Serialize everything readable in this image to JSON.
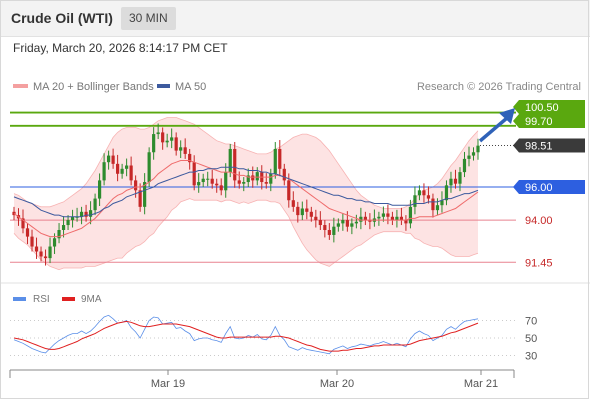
{
  "header": {
    "title": "Crude Oil (WTI)",
    "interval": "30 MIN",
    "datetime": "Friday, March 20, 2026 8:14:17 PM CET"
  },
  "legend": {
    "ma20_label": "MA 20 + Bollinger Bands",
    "ma50_label": "MA 50",
    "credit": "Research © 2026 Trading Central",
    "rsi_label": "RSI",
    "rsi_ma_label": "9MA"
  },
  "colors": {
    "candle_up": "#2e8b2e",
    "candle_down": "#c62828",
    "bollinger_fill": "#fde3e3",
    "bollinger_line": "#f7b3b3",
    "ma20": "#ef6b6b",
    "ma50": "#3d5a9e",
    "resistance": "#5aa80f",
    "pivot": "#2d5fe0",
    "support": "#e8828f",
    "rsi": "#5b8fe8",
    "rsi_ma": "#e02020",
    "arrow": "#2f62b8"
  },
  "chart_data": [
    {
      "type": "candlestick",
      "title": "Crude Oil (WTI)",
      "interval": "30 MIN",
      "x_tick_labels": [
        "Mar 19",
        "Mar 20",
        "Mar 21"
      ],
      "ylim": [
        90.8,
        101.2
      ],
      "levels": [
        {
          "value": 100.5,
          "label": "100.50",
          "role": "resistance"
        },
        {
          "value": 99.7,
          "label": "99.70",
          "role": "resistance"
        },
        {
          "value": 98.51,
          "label": "98.51",
          "role": "last"
        },
        {
          "value": 96.0,
          "label": "96.00",
          "role": "pivot"
        },
        {
          "value": 94.0,
          "label": "94.00",
          "role": "support"
        },
        {
          "value": 91.45,
          "label": "91.45",
          "role": "support"
        }
      ],
      "close": [
        94.3,
        94.1,
        93.5,
        93.0,
        92.4,
        92.1,
        91.8,
        91.7,
        92.4,
        92.9,
        93.4,
        93.7,
        94.0,
        94.2,
        94.2,
        94.5,
        94.2,
        94.6,
        95.3,
        96.4,
        97.5,
        97.9,
        97.4,
        96.8,
        97.1,
        97.3,
        96.4,
        95.8,
        94.8,
        96.3,
        98.1,
        99.2,
        99.3,
        98.7,
        98.8,
        99.0,
        98.2,
        98.4,
        98.0,
        97.5,
        96.1,
        96.3,
        96.5,
        96.5,
        96.2,
        96.1,
        95.8,
        96.9,
        98.3,
        96.4,
        96.2,
        96.3,
        96.7,
        96.4,
        96.9,
        96.3,
        96.2,
        96.8,
        98.3,
        97.1,
        96.4,
        95.2,
        94.8,
        94.3,
        94.7,
        94.5,
        94.2,
        94.0,
        93.7,
        93.4,
        93.1,
        93.6,
        93.8,
        94.0,
        93.6,
        93.8,
        93.9,
        94.2,
        94.0,
        93.9,
        94.1,
        94.2,
        94.4,
        94.2,
        94.0,
        94.2,
        94.0,
        93.8,
        94.8,
        95.5,
        95.8,
        95.5,
        95.3,
        94.6,
        94.9,
        95.2,
        96.1,
        96.5,
        96.2,
        96.9,
        97.7,
        97.9,
        98.1,
        98.5
      ],
      "ma20": [
        94.4,
        94.2,
        94.0,
        93.8,
        93.6,
        93.4,
        93.2,
        93.1,
        93.0,
        93.0,
        93.0,
        93.1,
        93.2,
        93.3,
        93.4,
        93.5,
        93.7,
        93.9,
        94.1,
        94.4,
        94.7,
        95.0,
        95.3,
        95.5,
        95.6,
        95.8,
        95.9,
        96.0,
        96.0,
        96.1,
        96.3,
        96.5,
        96.8,
        97.0,
        97.2,
        97.4,
        97.5,
        97.6,
        97.6,
        97.6,
        97.5,
        97.4,
        97.3,
        97.2,
        97.1,
        97.0,
        96.9,
        96.9,
        96.9,
        96.8,
        96.7,
        96.7,
        96.6,
        96.6,
        96.6,
        96.6,
        96.6,
        96.6,
        96.7,
        96.7,
        96.6,
        96.5,
        96.3,
        96.1,
        95.9,
        95.7,
        95.5,
        95.3,
        95.1,
        94.9,
        94.7,
        94.6,
        94.5,
        94.4,
        94.3,
        94.2,
        94.1,
        94.0,
        94.0,
        94.0,
        94.0,
        94.0,
        94.0,
        94.0,
        94.0,
        94.0,
        94.0,
        94.0,
        94.1,
        94.1,
        94.2,
        94.2,
        94.2,
        94.2,
        94.3,
        94.4,
        94.5,
        94.6,
        94.7,
        94.9,
        95.1,
        95.3,
        95.5,
        95.7
      ],
      "bollinger_upper": [
        95.6,
        95.5,
        95.3,
        95.1,
        95.0,
        94.9,
        94.8,
        94.8,
        94.8,
        94.9,
        95.0,
        95.1,
        95.3,
        95.5,
        95.7,
        95.9,
        96.2,
        96.6,
        97.0,
        97.5,
        98.0,
        98.5,
        99.0,
        99.3,
        99.5,
        99.6,
        99.6,
        99.6,
        99.5,
        99.5,
        99.6,
        99.8,
        100.0,
        100.1,
        100.2,
        100.2,
        100.2,
        100.1,
        100.0,
        99.9,
        99.8,
        99.6,
        99.4,
        99.2,
        99.0,
        98.8,
        98.7,
        98.6,
        98.6,
        98.5,
        98.4,
        98.3,
        98.2,
        98.1,
        98.0,
        98.0,
        98.0,
        98.1,
        98.3,
        98.4,
        98.6,
        98.8,
        99.0,
        99.1,
        99.2,
        99.2,
        99.1,
        99.0,
        98.8,
        98.5,
        98.2,
        97.8,
        97.4,
        97.0,
        96.6,
        96.2,
        95.8,
        95.5,
        95.3,
        95.1,
        94.9,
        94.8,
        94.7,
        94.7,
        94.7,
        94.7,
        94.7,
        94.8,
        95.0,
        95.3,
        95.6,
        95.8,
        95.9,
        96.0,
        96.2,
        96.5,
        96.9,
        97.3,
        97.6,
        98.0,
        98.4,
        98.8,
        99.1,
        99.4
      ],
      "bollinger_lower": [
        93.2,
        92.9,
        92.7,
        92.5,
        92.2,
        91.9,
        91.6,
        91.4,
        91.2,
        91.1,
        91.0,
        91.1,
        91.1,
        91.1,
        91.1,
        91.1,
        91.2,
        91.2,
        91.2,
        91.3,
        91.4,
        91.5,
        91.6,
        91.7,
        91.7,
        92.0,
        92.2,
        92.4,
        92.5,
        92.7,
        93.0,
        93.2,
        93.6,
        93.9,
        94.2,
        94.6,
        94.8,
        95.1,
        95.2,
        95.3,
        95.2,
        95.2,
        95.2,
        95.2,
        95.2,
        95.2,
        95.1,
        95.2,
        95.2,
        95.1,
        95.0,
        95.1,
        95.0,
        95.1,
        95.2,
        95.2,
        95.2,
        95.1,
        95.1,
        95.0,
        94.6,
        94.2,
        93.6,
        93.1,
        92.6,
        92.2,
        91.9,
        91.6,
        91.4,
        91.3,
        91.2,
        91.4,
        91.6,
        91.8,
        92.0,
        92.2,
        92.4,
        92.5,
        92.7,
        92.9,
        93.1,
        93.2,
        93.3,
        93.3,
        93.3,
        93.3,
        93.3,
        93.2,
        93.2,
        92.9,
        92.8,
        92.6,
        92.5,
        92.4,
        92.4,
        92.3,
        92.1,
        91.9,
        91.8,
        91.8,
        91.8,
        91.8,
        91.9,
        92.0
      ],
      "ma50": [
        95.4,
        95.3,
        95.2,
        95.1,
        95.0,
        94.8,
        94.6,
        94.5,
        94.4,
        94.3,
        94.3,
        94.2,
        94.2,
        94.2,
        94.2,
        94.2,
        94.3,
        94.3,
        94.4,
        94.5,
        94.7,
        94.8,
        95.0,
        95.1,
        95.2,
        95.4,
        95.5,
        95.6,
        95.7,
        95.8,
        95.9,
        96.0,
        96.2,
        96.3,
        96.4,
        96.5,
        96.6,
        96.7,
        96.8,
        96.9,
        96.9,
        97.0,
        97.0,
        97.1,
        97.1,
        97.1,
        97.2,
        97.2,
        97.2,
        97.2,
        97.1,
        97.1,
        97.0,
        97.0,
        97.0,
        96.9,
        96.9,
        96.8,
        96.8,
        96.7,
        96.6,
        96.5,
        96.4,
        96.3,
        96.2,
        96.1,
        96.0,
        95.9,
        95.8,
        95.7,
        95.6,
        95.5,
        95.5,
        95.4,
        95.3,
        95.3,
        95.2,
        95.2,
        95.1,
        95.1,
        95.0,
        95.0,
        95.0,
        95.0,
        94.9,
        94.9,
        94.9,
        94.9,
        94.9,
        95.0,
        95.0,
        95.0,
        95.1,
        95.1,
        95.1,
        95.2,
        95.3,
        95.3,
        95.4,
        95.5,
        95.6,
        95.6,
        95.7,
        95.8
      ]
    },
    {
      "type": "line",
      "series": [
        {
          "name": "RSI",
          "values": [
            48,
            46,
            44,
            41,
            38,
            36,
            34,
            33,
            38,
            43,
            47,
            50,
            53,
            55,
            55,
            58,
            55,
            58,
            63,
            69,
            74,
            76,
            72,
            67,
            68,
            70,
            62,
            57,
            50,
            60,
            70,
            74,
            73,
            66,
            67,
            68,
            61,
            62,
            58,
            55,
            47,
            49,
            50,
            50,
            48,
            47,
            45,
            55,
            63,
            50,
            49,
            50,
            53,
            51,
            54,
            49,
            48,
            53,
            63,
            53,
            48,
            40,
            38,
            36,
            39,
            37,
            36,
            35,
            34,
            33,
            32,
            37,
            39,
            41,
            38,
            40,
            41,
            43,
            42,
            41,
            43,
            44,
            46,
            44,
            42,
            44,
            42,
            40,
            49,
            55,
            58,
            55,
            53,
            47,
            50,
            53,
            60,
            63,
            60,
            65,
            69,
            70,
            71,
            72
          ]
        },
        {
          "name": "9MA",
          "values": [
            50,
            49,
            48,
            46,
            44,
            42,
            40,
            38,
            37,
            37,
            38,
            40,
            42,
            44,
            46,
            49,
            51,
            53,
            55,
            58,
            61,
            63,
            65,
            67,
            68,
            69,
            68,
            66,
            64,
            63,
            63,
            64,
            65,
            66,
            66,
            66,
            66,
            65,
            64,
            63,
            61,
            59,
            57,
            55,
            53,
            51,
            50,
            50,
            51,
            51,
            51,
            51,
            51,
            51,
            51,
            51,
            51,
            51,
            52,
            52,
            51,
            50,
            48,
            46,
            44,
            42,
            41,
            39,
            37,
            36,
            35,
            35,
            35,
            36,
            36,
            37,
            38,
            38,
            39,
            40,
            41,
            41,
            42,
            42,
            42,
            42,
            42,
            42,
            43,
            45,
            47,
            48,
            49,
            50,
            51,
            52,
            54,
            56,
            57,
            59,
            61,
            63,
            65,
            67
          ]
        }
      ],
      "ylim": [
        18,
        82
      ],
      "y_ticks": [
        70,
        50,
        30
      ],
      "y_tick_labels": [
        "70",
        "50",
        "30"
      ]
    }
  ]
}
